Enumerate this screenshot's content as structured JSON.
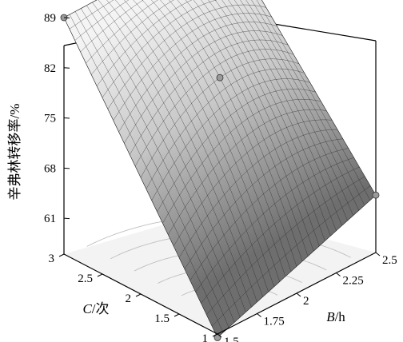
{
  "chart_data": {
    "type": "surface",
    "zlabel": "辛弗林转移率/%",
    "xlabel_main": "B",
    "xlabel_unit": "/h",
    "ylabel_main": "C",
    "ylabel_unit": "/次",
    "x_ticks": [
      "1.5",
      "1.75",
      "2",
      "2.25",
      "2.5"
    ],
    "y_ticks": [
      "1",
      "1.5",
      "2",
      "2.5",
      "3"
    ],
    "z_ticks": [
      "61",
      "68",
      "75",
      "82",
      "89"
    ],
    "xlim": [
      1.5,
      2.5
    ],
    "ylim": [
      1,
      3
    ],
    "zlim": [
      56,
      90
    ],
    "surface": {
      "x_values": [
        1.5,
        1.75,
        2,
        2.25,
        2.5
      ],
      "y_values": [
        1,
        1.5,
        2,
        2.5,
        3
      ],
      "z_corners": {
        "x1.5_y1": 55.5,
        "x2.5_y1": 64.0,
        "x1.5_y3": 89.0,
        "x2.5_y3": 89.5
      },
      "z_center": 80.5
    },
    "design_points": [
      {
        "x": 2.5,
        "y": 3,
        "z": 89.5
      },
      {
        "x": 1.5,
        "y": 3,
        "z": 89.0
      },
      {
        "x": 2,
        "y": 2,
        "z": 80.5
      },
      {
        "x": 2.5,
        "y": 1,
        "z": 64.0
      },
      {
        "x": 1.5,
        "y": 1,
        "z": 55.5
      }
    ],
    "colors": {
      "surface_light": "#f4f4f4",
      "surface_dark": "#6e6e6e",
      "mesh": "#222222",
      "floor": "#f3f3f3",
      "contour": "#bfbfbf"
    }
  }
}
